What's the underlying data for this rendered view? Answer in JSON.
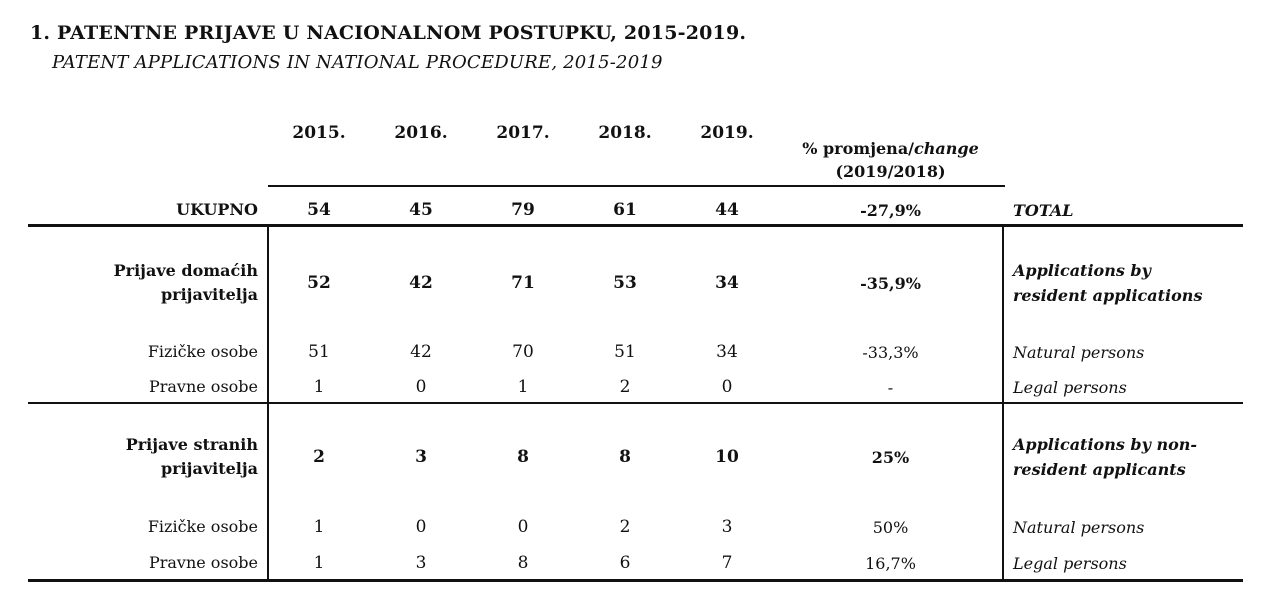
{
  "title": "1. PATENTNE PRIJAVE U NACIONALNOM POSTUPKU, 2015-2019.",
  "subtitle": "PATENT APPLICATIONS IN NATIONAL PROCEDURE, 2015-2019",
  "colors": {
    "ink": "#111111",
    "background": "#ffffff"
  },
  "header": {
    "years": [
      "2015.",
      "2016.",
      "2017.",
      "2018.",
      "2019."
    ],
    "pct_prefix": "% promjena/",
    "pct_italic": "change",
    "pct_line2": "(2019/2018)"
  },
  "rows": [
    {
      "hr": "UKUPNO",
      "v": [
        "54",
        "45",
        "79",
        "61",
        "44"
      ],
      "pct": "-27,9%",
      "en": "TOTAL"
    },
    {
      "hr": "Prijave domaćih\nprijavitelja",
      "v": [
        "52",
        "42",
        "71",
        "53",
        "34"
      ],
      "pct": "-35,9%",
      "en": "Applications by\nresident applications"
    },
    {
      "hr": "Fizičke osobe",
      "v": [
        "51",
        "42",
        "70",
        "51",
        "34"
      ],
      "pct": "-33,3%",
      "en": "Natural persons"
    },
    {
      "hr": "Pravne osobe",
      "v": [
        "1",
        "0",
        "1",
        "2",
        "0"
      ],
      "pct": "-",
      "en": "Legal persons"
    },
    {
      "hr": "Prijave stranih\nprijavitelja",
      "v": [
        "2",
        "3",
        "8",
        "8",
        "10"
      ],
      "pct": "25%",
      "en": "Applications by non-\nresident applicants"
    },
    {
      "hr": "Fizičke osobe",
      "v": [
        "1",
        "0",
        "0",
        "2",
        "3"
      ],
      "pct": "50%",
      "en": "Natural persons"
    },
    {
      "hr": "Pravne osobe",
      "v": [
        "1",
        "3",
        "8",
        "6",
        "7"
      ],
      "pct": "16,7%",
      "en": "Legal persons"
    }
  ]
}
